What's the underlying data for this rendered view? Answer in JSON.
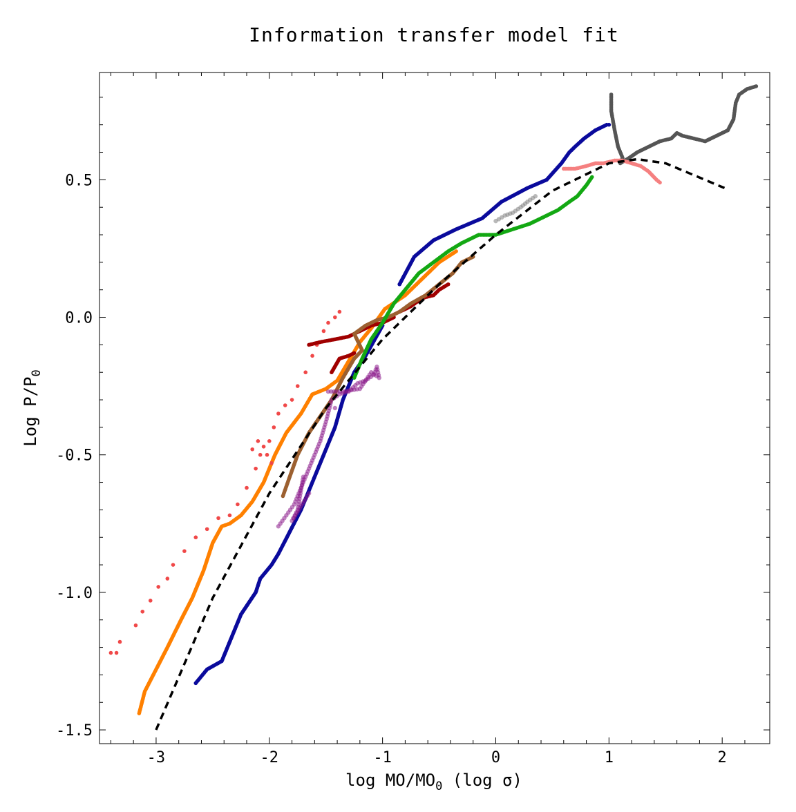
{
  "chart_data": {
    "type": "scatter",
    "title": "Information transfer model fit",
    "xlabel": "log MO/MO",
    "xlabel_sub": "0",
    "xlabel_tail": " (log σ)",
    "ylabel": "Log P/P",
    "ylabel_sub": "0",
    "xlim": [
      -3.5,
      2.42
    ],
    "ylim": [
      -1.55,
      0.89
    ],
    "x_ticks": [
      -3,
      -2,
      -1,
      0,
      1,
      2
    ],
    "x_tick_labels": [
      "-3",
      "-2",
      "-1",
      "0",
      "1",
      "2"
    ],
    "y_ticks": [
      -1.5,
      -1.0,
      -0.5,
      0.0,
      0.5
    ],
    "y_tick_labels": [
      "-1.5",
      "-1.0",
      "-0.5",
      "0.0",
      "0.5"
    ],
    "grid": false,
    "colors": {
      "navy": "#0a0a9c",
      "orange": "#ff8000",
      "salmon": "#f04848",
      "green": "#13a813",
      "brown": "#9c6030",
      "darkred": "#a00000",
      "purple": "#8a1a8a",
      "gray": "#555555",
      "lightgray": "#808080",
      "pink": "#f58080",
      "fit": "#000000"
    },
    "series": [
      {
        "color": "navy",
        "style": "dense",
        "points": [
          [
            -2.65,
            -1.33
          ],
          [
            -2.55,
            -1.28
          ],
          [
            -2.42,
            -1.25
          ],
          [
            -2.35,
            -1.18
          ],
          [
            -2.25,
            -1.08
          ],
          [
            -2.12,
            -1.0
          ],
          [
            -2.08,
            -0.95
          ],
          [
            -1.98,
            -0.9
          ],
          [
            -1.92,
            -0.86
          ],
          [
            -1.82,
            -0.78
          ],
          [
            -1.72,
            -0.7
          ],
          [
            -1.62,
            -0.6
          ],
          [
            -1.52,
            -0.5
          ],
          [
            -1.42,
            -0.4
          ],
          [
            -1.35,
            -0.3
          ],
          [
            -1.25,
            -0.2
          ],
          [
            -1.15,
            -0.14
          ],
          [
            -1.0,
            -0.03
          ],
          [
            -0.85,
            0.12
          ],
          [
            -0.72,
            0.22
          ],
          [
            -0.55,
            0.28
          ],
          [
            -0.35,
            0.32
          ],
          [
            -0.12,
            0.36
          ],
          [
            0.05,
            0.42
          ],
          [
            0.28,
            0.47
          ],
          [
            0.45,
            0.5
          ],
          [
            0.58,
            0.56
          ],
          [
            0.65,
            0.6
          ],
          [
            0.7,
            0.62
          ],
          [
            0.78,
            0.65
          ],
          [
            0.88,
            0.68
          ],
          [
            0.98,
            0.7
          ],
          [
            1.0,
            0.7
          ]
        ]
      },
      {
        "color": "orange",
        "style": "dense",
        "points": [
          [
            -3.15,
            -1.44
          ],
          [
            -3.1,
            -1.36
          ],
          [
            -3.0,
            -1.28
          ],
          [
            -2.9,
            -1.2
          ],
          [
            -2.78,
            -1.1
          ],
          [
            -2.68,
            -1.02
          ],
          [
            -2.58,
            -0.92
          ],
          [
            -2.5,
            -0.82
          ],
          [
            -2.42,
            -0.76
          ],
          [
            -2.35,
            -0.75
          ],
          [
            -2.25,
            -0.72
          ],
          [
            -2.15,
            -0.67
          ],
          [
            -2.05,
            -0.6
          ],
          [
            -1.95,
            -0.5
          ],
          [
            -1.85,
            -0.42
          ],
          [
            -1.72,
            -0.35
          ],
          [
            -1.62,
            -0.28
          ],
          [
            -1.5,
            -0.26
          ],
          [
            -1.4,
            -0.23
          ],
          [
            -1.3,
            -0.16
          ],
          [
            -1.2,
            -0.09
          ],
          [
            -1.1,
            -0.04
          ],
          [
            -0.98,
            0.03
          ],
          [
            -0.8,
            0.08
          ],
          [
            -0.65,
            0.14
          ],
          [
            -0.5,
            0.2
          ],
          [
            -0.35,
            0.24
          ]
        ]
      },
      {
        "color": "salmon",
        "style": "sparse",
        "points": [
          [
            -3.4,
            -1.22
          ],
          [
            -3.35,
            -1.22
          ],
          [
            -3.32,
            -1.18
          ],
          [
            -3.18,
            -1.12
          ],
          [
            -3.12,
            -1.07
          ],
          [
            -3.05,
            -1.03
          ],
          [
            -2.98,
            -0.98
          ],
          [
            -2.9,
            -0.95
          ],
          [
            -2.85,
            -0.9
          ],
          [
            -2.75,
            -0.85
          ],
          [
            -2.65,
            -0.8
          ],
          [
            -2.55,
            -0.77
          ],
          [
            -2.45,
            -0.73
          ],
          [
            -2.35,
            -0.72
          ],
          [
            -2.28,
            -0.68
          ],
          [
            -2.2,
            -0.62
          ],
          [
            -2.12,
            -0.55
          ],
          [
            -2.08,
            -0.5
          ],
          [
            -2.05,
            -0.47
          ],
          [
            -2.0,
            -0.45
          ],
          [
            -1.96,
            -0.4
          ],
          [
            -1.92,
            -0.35
          ],
          [
            -1.86,
            -0.32
          ],
          [
            -1.8,
            -0.3
          ],
          [
            -1.75,
            -0.25
          ],
          [
            -1.68,
            -0.2
          ],
          [
            -1.62,
            -0.14
          ],
          [
            -1.58,
            -0.1
          ],
          [
            -1.52,
            -0.05
          ],
          [
            -1.48,
            -0.02
          ],
          [
            -1.42,
            0.0
          ],
          [
            -1.38,
            0.02
          ],
          [
            -2.02,
            -0.5
          ],
          [
            -1.98,
            -0.53
          ],
          [
            -2.1,
            -0.45
          ],
          [
            -2.15,
            -0.48
          ]
        ]
      },
      {
        "color": "darkred",
        "style": "dense",
        "points": [
          [
            -1.65,
            -0.1
          ],
          [
            -1.55,
            -0.09
          ],
          [
            -1.42,
            -0.08
          ],
          [
            -1.3,
            -0.07
          ],
          [
            -1.2,
            -0.05
          ],
          [
            -1.1,
            -0.03
          ],
          [
            -1.0,
            -0.02
          ],
          [
            -0.9,
            0.0
          ],
          [
            -1.45,
            -0.2
          ],
          [
            -1.38,
            -0.15
          ],
          [
            -1.3,
            -0.14
          ],
          [
            -1.25,
            -0.13
          ],
          [
            -0.85,
            0.02
          ],
          [
            -0.75,
            0.04
          ],
          [
            -0.65,
            0.07
          ],
          [
            -0.55,
            0.08
          ],
          [
            -0.5,
            0.1
          ],
          [
            -0.42,
            0.12
          ]
        ]
      },
      {
        "color": "brown",
        "style": "dense",
        "points": [
          [
            -1.88,
            -0.65
          ],
          [
            -1.82,
            -0.58
          ],
          [
            -1.75,
            -0.5
          ],
          [
            -1.65,
            -0.42
          ],
          [
            -1.55,
            -0.36
          ],
          [
            -1.45,
            -0.3
          ],
          [
            -1.35,
            -0.22
          ],
          [
            -1.25,
            -0.15
          ],
          [
            -1.18,
            -0.12
          ],
          [
            -1.25,
            -0.06
          ],
          [
            -1.15,
            -0.03
          ],
          [
            -1.05,
            -0.01
          ],
          [
            -0.95,
            0.0
          ],
          [
            -0.85,
            0.02
          ],
          [
            -0.75,
            0.05
          ],
          [
            -0.62,
            0.08
          ],
          [
            -0.5,
            0.12
          ],
          [
            -0.38,
            0.16
          ],
          [
            -0.3,
            0.2
          ],
          [
            -0.2,
            0.22
          ]
        ]
      },
      {
        "color": "green",
        "style": "dense",
        "points": [
          [
            -1.25,
            -0.22
          ],
          [
            -1.18,
            -0.15
          ],
          [
            -1.1,
            -0.08
          ],
          [
            -1.0,
            -0.02
          ],
          [
            -0.9,
            0.05
          ],
          [
            -0.8,
            0.1
          ],
          [
            -0.68,
            0.16
          ],
          [
            -0.55,
            0.2
          ],
          [
            -0.42,
            0.24
          ],
          [
            -0.3,
            0.27
          ],
          [
            -0.15,
            0.3
          ],
          [
            0.0,
            0.3
          ],
          [
            0.15,
            0.32
          ],
          [
            0.3,
            0.34
          ],
          [
            0.45,
            0.37
          ],
          [
            0.55,
            0.39
          ],
          [
            0.65,
            0.42
          ],
          [
            0.72,
            0.44
          ],
          [
            0.8,
            0.48
          ],
          [
            0.85,
            0.51
          ]
        ]
      },
      {
        "color": "purple",
        "style": "faded",
        "points": [
          [
            -1.92,
            -0.76
          ],
          [
            -1.85,
            -0.72
          ],
          [
            -1.78,
            -0.68
          ],
          [
            -1.72,
            -0.62
          ],
          [
            -1.65,
            -0.55
          ],
          [
            -1.6,
            -0.5
          ],
          [
            -1.55,
            -0.45
          ],
          [
            -1.5,
            -0.38
          ],
          [
            -1.45,
            -0.3
          ],
          [
            -1.38,
            -0.28
          ],
          [
            -1.3,
            -0.27
          ],
          [
            -1.22,
            -0.24
          ],
          [
            -1.15,
            -0.23
          ],
          [
            -1.08,
            -0.21
          ],
          [
            -1.05,
            -0.18
          ],
          [
            -1.03,
            -0.22
          ],
          [
            -1.1,
            -0.2
          ],
          [
            -1.2,
            -0.26
          ],
          [
            -1.35,
            -0.27
          ],
          [
            -1.48,
            -0.27
          ],
          [
            -1.7,
            -0.58
          ],
          [
            -1.75,
            -0.7
          ],
          [
            -1.8,
            -0.74
          ],
          [
            -1.65,
            -0.64
          ],
          [
            -1.42,
            -0.33
          ]
        ]
      },
      {
        "color": "gray",
        "style": "dense",
        "points": [
          [
            1.02,
            0.81
          ],
          [
            1.02,
            0.75
          ],
          [
            1.05,
            0.68
          ],
          [
            1.08,
            0.62
          ],
          [
            1.12,
            0.58
          ],
          [
            1.1,
            0.56
          ],
          [
            1.18,
            0.58
          ],
          [
            1.25,
            0.6
          ],
          [
            1.35,
            0.62
          ],
          [
            1.45,
            0.64
          ],
          [
            1.55,
            0.65
          ],
          [
            1.6,
            0.67
          ],
          [
            1.65,
            0.66
          ],
          [
            1.75,
            0.65
          ],
          [
            1.85,
            0.64
          ],
          [
            1.95,
            0.66
          ],
          [
            2.05,
            0.68
          ],
          [
            2.1,
            0.72
          ],
          [
            2.12,
            0.78
          ],
          [
            2.15,
            0.81
          ],
          [
            2.22,
            0.83
          ],
          [
            2.3,
            0.84
          ]
        ]
      },
      {
        "color": "lightgray",
        "style": "faded",
        "points": [
          [
            0.0,
            0.35
          ],
          [
            0.08,
            0.37
          ],
          [
            0.15,
            0.38
          ],
          [
            0.22,
            0.4
          ],
          [
            0.28,
            0.42
          ],
          [
            0.35,
            0.44
          ]
        ]
      },
      {
        "color": "pink",
        "style": "dense",
        "points": [
          [
            0.6,
            0.54
          ],
          [
            0.7,
            0.54
          ],
          [
            0.8,
            0.55
          ],
          [
            0.88,
            0.56
          ],
          [
            0.95,
            0.56
          ],
          [
            1.05,
            0.57
          ],
          [
            1.12,
            0.57
          ],
          [
            1.2,
            0.56
          ],
          [
            1.28,
            0.55
          ],
          [
            1.35,
            0.53
          ],
          [
            1.42,
            0.5
          ],
          [
            1.45,
            0.49
          ]
        ]
      }
    ],
    "fit_curve": {
      "color": "fit",
      "style": "dashed",
      "x_start": -3.0,
      "x_end": 2.02,
      "points": [
        [
          -3.0,
          -1.5
        ],
        [
          -2.5,
          -1.02
        ],
        [
          -2.0,
          -0.64
        ],
        [
          -1.5,
          -0.33
        ],
        [
          -1.0,
          -0.08
        ],
        [
          -0.5,
          0.12
        ],
        [
          0.0,
          0.3
        ],
        [
          0.5,
          0.46
        ],
        [
          1.0,
          0.56
        ],
        [
          1.25,
          0.575
        ],
        [
          1.5,
          0.56
        ],
        [
          2.02,
          0.47
        ]
      ]
    }
  }
}
